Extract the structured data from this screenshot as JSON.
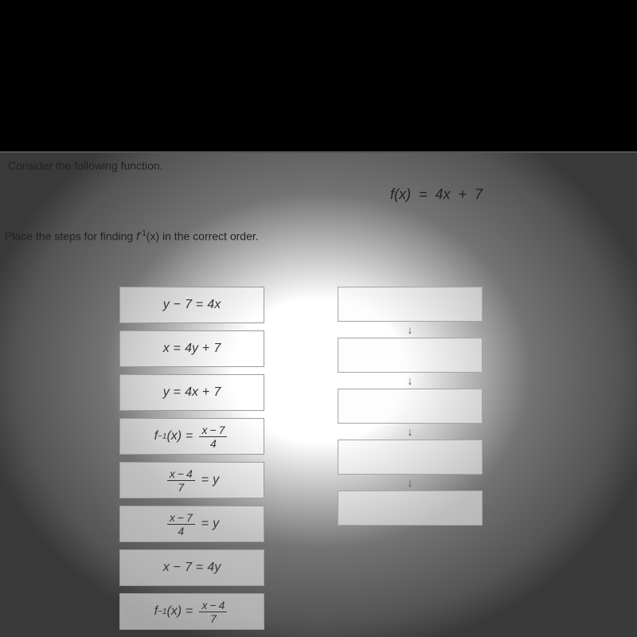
{
  "header": {
    "line1": "Consider the following function.",
    "function": "f(x)  =  4x  +  7",
    "line2_pre": "Place the steps for finding ",
    "line2_fn": "f",
    "line2_exp": "-1",
    "line2_arg": "(x)",
    "line2_post": " in the correct order."
  },
  "tiles": [
    {
      "html": "<span class='mi'>y</span><span class='op'>−</span>7<span class='op'>=</span>4<span class='mi'>x</span>"
    },
    {
      "html": "<span class='mi'>x</span><span class='op'>=</span>4<span class='mi'>y</span><span class='op'>+</span>7"
    },
    {
      "html": "<span class='mi'>y</span><span class='op'>=</span>4<span class='mi'>x</span><span class='op'>+</span>7"
    },
    {
      "html": "<span class='mi'>f</span><sup style='font-size:10px'>−1</sup>(<span class='mi'>x</span>)<span class='op'>=</span><span class='frac tight'><span class='n'><span class='mi'>x</span><span class='op'>−</span>7</span><span class='d'>4</span></span>"
    },
    {
      "html": "<span class='frac tight'><span class='n'><span class='mi'>x</span><span class='op'>−</span>4</span><span class='d'>7</span></span><span class='op'>=</span><span class='mi'>y</span>"
    },
    {
      "html": "<span class='frac tight'><span class='n'><span class='mi'>x</span><span class='op'>−</span>7</span><span class='d'>4</span></span><span class='op'>=</span><span class='mi'>y</span>"
    },
    {
      "html": "<span class='mi'>x</span><span class='op'>−</span>7<span class='op'>=</span>4<span class='mi'>y</span>"
    },
    {
      "html": "<span class='mi'>f</span><sup style='font-size:10px'>−1</sup>(<span class='mi'>x</span>)<span class='op'>=</span><span class='frac tight'><span class='n'><span class='mi'>x</span><span class='op'>−</span>4</span><span class='d'>7</span></span>"
    }
  ],
  "arrow": "↓",
  "slot_count": 5,
  "colors": {
    "page_bg": "#ffffff",
    "border": "#9a9a9a",
    "text": "#222222",
    "arrow": "#555555"
  }
}
